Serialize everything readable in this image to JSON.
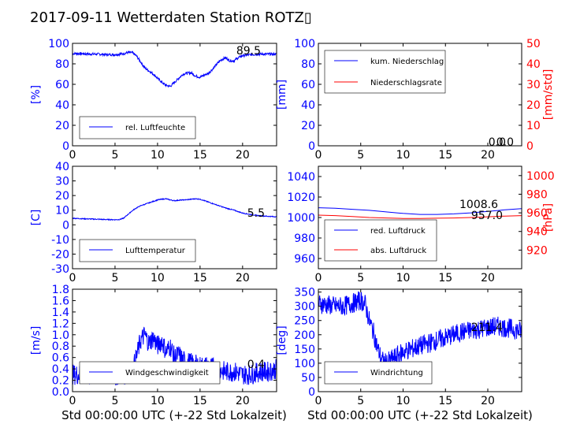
{
  "page": {
    "title": "2017-09-11 Wetterdaten Station ROTZ▯"
  },
  "colors": {
    "primary": "#0000ff",
    "secondary": "#ff0000",
    "text": "#000000"
  },
  "chart_data": [
    {
      "id": "humidity",
      "type": "line",
      "x_ticks": [
        0,
        5,
        10,
        15,
        20
      ],
      "xlim": [
        0,
        24
      ],
      "ylim": [
        0,
        100
      ],
      "y_ticks": [
        0,
        20,
        40,
        60,
        80,
        100
      ],
      "ylabel": "[%]",
      "last_value_label": "89.5",
      "series": [
        {
          "name": "rel. Luftfeuchte",
          "color": "#0000ff",
          "x": [
            0,
            1,
            2,
            3,
            4,
            5,
            6,
            6.5,
            7,
            7.5,
            8,
            8.5,
            9,
            9.5,
            10,
            10.5,
            11,
            11.5,
            12,
            12.5,
            13,
            13.5,
            14,
            14.5,
            15,
            15.5,
            16,
            16.5,
            17,
            17.5,
            18,
            18.5,
            19,
            19.5,
            20,
            21,
            22,
            23,
            24
          ],
          "y": [
            90,
            90,
            89.5,
            89.5,
            89,
            89,
            90,
            91,
            91,
            88,
            82,
            76,
            73,
            70,
            66,
            62,
            59,
            58,
            62,
            66,
            70,
            71,
            71,
            68,
            67,
            69,
            71,
            75,
            80,
            84,
            86,
            83,
            83,
            86,
            88,
            89,
            89.5,
            89.5,
            89.5
          ],
          "noise": 1.2
        }
      ]
    },
    {
      "id": "precipitation",
      "type": "line",
      "x_ticks": [
        0,
        5,
        10,
        15,
        20
      ],
      "xlim": [
        0,
        24
      ],
      "ylim": [
        0,
        100
      ],
      "y_ticks": [
        0,
        20,
        40,
        60,
        80,
        100
      ],
      "ylabel": "[mm]",
      "y2lim": [
        0,
        50
      ],
      "y2_ticks": [
        0,
        10,
        20,
        30,
        40,
        50
      ],
      "y2label": "[mm/std]",
      "last_value_labels": [
        "0.0",
        "0.0"
      ],
      "series": [
        {
          "name": "kum. Niederschlag",
          "color": "#0000ff",
          "axis": "left",
          "x": [
            0,
            24
          ],
          "y": [
            0,
            0
          ]
        },
        {
          "name": "Niederschlagsrate",
          "color": "#ff0000",
          "axis": "right",
          "x": [
            0,
            24
          ],
          "y": [
            0,
            0
          ]
        }
      ]
    },
    {
      "id": "temperature",
      "type": "line",
      "x_ticks": [
        0,
        5,
        10,
        15,
        20
      ],
      "xlim": [
        0,
        24
      ],
      "ylim": [
        -30,
        40
      ],
      "y_ticks": [
        -30,
        -20,
        -10,
        0,
        10,
        20,
        30,
        40
      ],
      "ylabel": "[C]",
      "last_value_label": "5.5",
      "series": [
        {
          "name": "Lufttemperatur",
          "color": "#0000ff",
          "x": [
            0,
            1,
            2,
            3,
            4,
            5,
            5.5,
            6,
            6.5,
            7,
            7.5,
            8,
            8.5,
            9,
            9.5,
            10,
            10.5,
            11,
            11.5,
            12,
            12.5,
            13,
            13.5,
            14,
            14.5,
            15,
            15.5,
            16,
            16.5,
            17,
            18,
            19,
            20,
            21,
            22,
            23,
            24
          ],
          "y": [
            4.5,
            4.2,
            4,
            3.8,
            3.6,
            3.5,
            3.6,
            4.5,
            7,
            9.5,
            11.5,
            13,
            14,
            15,
            16,
            17,
            17.5,
            17.8,
            17,
            16.5,
            16.8,
            17,
            17.2,
            17.5,
            17.8,
            17.5,
            16.5,
            15.5,
            14.5,
            13.5,
            11.5,
            10,
            8,
            7,
            6.2,
            5.8,
            5.5
          ],
          "noise": 0.3
        }
      ]
    },
    {
      "id": "pressure",
      "type": "line",
      "x_ticks": [
        0,
        5,
        10,
        15,
        20
      ],
      "xlim": [
        0,
        24
      ],
      "ylim": [
        950,
        1050
      ],
      "y_ticks": [
        960,
        980,
        1000,
        1020,
        1040
      ],
      "ylabel": "",
      "y2lim": [
        900,
        1010
      ],
      "y2_ticks": [
        920,
        940,
        960,
        980,
        1000
      ],
      "y2label": "[hPa]",
      "last_value_labels": [
        "1008.6",
        "957.0"
      ],
      "series": [
        {
          "name": "red. Luftdruck",
          "color": "#0000ff",
          "axis": "left",
          "x": [
            0,
            2,
            4,
            6,
            8,
            10,
            12,
            14,
            16,
            18,
            20,
            22,
            24
          ],
          "y": [
            1009.5,
            1009,
            1008,
            1007,
            1005.5,
            1004,
            1003,
            1003,
            1003.5,
            1004.5,
            1006,
            1007.5,
            1008.6
          ]
        },
        {
          "name": "abs. Luftdruck",
          "color": "#ff0000",
          "axis": "right",
          "x": [
            0,
            2,
            4,
            6,
            8,
            10,
            12,
            14,
            16,
            18,
            20,
            22,
            24
          ],
          "y": [
            957.5,
            957,
            956,
            955,
            954.5,
            954,
            954,
            954.2,
            954.5,
            955,
            955.8,
            956.5,
            957.0
          ]
        }
      ]
    },
    {
      "id": "windspeed",
      "type": "line",
      "x_ticks": [
        0,
        5,
        10,
        15,
        20
      ],
      "xlim": [
        0,
        24
      ],
      "ylim": [
        0,
        1.8
      ],
      "y_ticks": [
        0,
        0.2,
        0.4,
        0.6,
        0.8,
        1.0,
        1.2,
        1.4,
        1.6,
        1.8
      ],
      "y_tick_labels": [
        "0.0",
        "0.2",
        "0.4",
        "0.6",
        "0.8",
        "1.0",
        "1.2",
        "1.4",
        "1.6",
        "1.8"
      ],
      "ylabel": "[m/s]",
      "last_value_label": "0.4",
      "series": [
        {
          "name": "Windgeschwindigkeit",
          "color": "#0000ff",
          "x": [
            0,
            1,
            2,
            3,
            4,
            5,
            6,
            6.5,
            7,
            7.5,
            8,
            8.5,
            9,
            9.5,
            10,
            10.5,
            11,
            11.5,
            12,
            12.5,
            13,
            14,
            15,
            16,
            17,
            18,
            19,
            20,
            21,
            22,
            23,
            24
          ],
          "y": [
            0.3,
            0.3,
            0.28,
            0.3,
            0.3,
            0.28,
            0.3,
            0.3,
            0.35,
            0.6,
            0.9,
            1.0,
            0.85,
            0.95,
            0.8,
            0.9,
            0.7,
            0.8,
            0.6,
            0.65,
            0.55,
            0.5,
            0.45,
            0.45,
            0.4,
            0.35,
            0.35,
            0.3,
            0.3,
            0.35,
            0.35,
            0.4
          ],
          "noise": 0.18
        }
      ]
    },
    {
      "id": "winddirection",
      "type": "line",
      "x_ticks": [
        0,
        5,
        10,
        15,
        20
      ],
      "xlim": [
        0,
        24
      ],
      "ylim": [
        0,
        360
      ],
      "y_ticks": [
        0,
        50,
        100,
        150,
        200,
        250,
        300,
        350
      ],
      "ylabel": "[deg]",
      "last_value_label": "211.4",
      "series": [
        {
          "name": "Windrichtung",
          "color": "#0000ff",
          "x": [
            0,
            1,
            2,
            3,
            4,
            5,
            5.5,
            6,
            6.5,
            7,
            7.5,
            8,
            8.5,
            9,
            10,
            11,
            12,
            13,
            14,
            15,
            16,
            17,
            18,
            19,
            20,
            21,
            22,
            23,
            24
          ],
          "y": [
            310,
            305,
            300,
            300,
            310,
            320,
            310,
            250,
            210,
            150,
            110,
            100,
            110,
            120,
            140,
            150,
            160,
            170,
            180,
            190,
            200,
            210,
            215,
            220,
            225,
            230,
            225,
            220,
            211.4
          ],
          "noise": 35
        }
      ]
    }
  ],
  "xlabels": {
    "bottom_left": "Std 00:00:00 UTC (+-22 Std Lokalzeit)",
    "bottom_right": "Std 00:00:00 UTC (+-22 Std Lokalzeit)"
  }
}
